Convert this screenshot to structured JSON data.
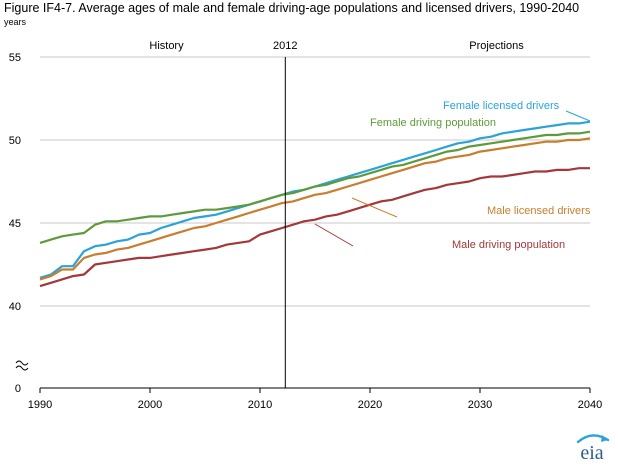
{
  "figure": {
    "title": "Figure IF4-7. Average ages of male and female driving-age populations and licensed drivers, 1990-2040",
    "units": "years",
    "history_label": "History",
    "divider_label": "2012",
    "projections_label": "Projections",
    "logo_text": "eia"
  },
  "colors": {
    "female_licensed": "#2aa3d8",
    "female_population": "#5d9b3a",
    "male_licensed": "#c97d2e",
    "male_population": "#a3373a",
    "gridline": "#c8c8c8",
    "axis": "#000000"
  },
  "chart_data": {
    "type": "line",
    "ylabel": "years",
    "xlim": [
      1990,
      2040
    ],
    "ylim_display": [
      40,
      55
    ],
    "y_axis_break": true,
    "y_ticks": [
      0,
      40,
      45,
      50,
      55
    ],
    "x_ticks": [
      1990,
      2000,
      2010,
      2020,
      2030,
      2040
    ],
    "divider_year": 2012.3,
    "grid": "horizontal",
    "x": [
      1990,
      1991,
      1992,
      1993,
      1994,
      1995,
      1996,
      1997,
      1998,
      1999,
      2000,
      2001,
      2002,
      2003,
      2004,
      2005,
      2006,
      2007,
      2008,
      2009,
      2010,
      2011,
      2012,
      2013,
      2014,
      2015,
      2016,
      2017,
      2018,
      2019,
      2020,
      2021,
      2022,
      2023,
      2024,
      2025,
      2026,
      2027,
      2028,
      2029,
      2030,
      2031,
      2032,
      2033,
      2034,
      2035,
      2036,
      2037,
      2038,
      2039,
      2040
    ],
    "series": [
      {
        "name": "Female licensed drivers",
        "key": "female_licensed",
        "values": [
          41.7,
          41.9,
          42.4,
          42.4,
          43.3,
          43.6,
          43.7,
          43.9,
          44.0,
          44.3,
          44.4,
          44.7,
          44.9,
          45.1,
          45.3,
          45.4,
          45.5,
          45.7,
          45.9,
          46.1,
          46.3,
          46.5,
          46.7,
          46.9,
          47.0,
          47.2,
          47.4,
          47.6,
          47.8,
          48.0,
          48.2,
          48.4,
          48.6,
          48.8,
          49.0,
          49.2,
          49.4,
          49.6,
          49.8,
          49.9,
          50.1,
          50.2,
          50.4,
          50.5,
          50.6,
          50.7,
          50.8,
          50.9,
          51.0,
          51.0,
          51.1
        ]
      },
      {
        "name": "Female driving population",
        "key": "female_population",
        "values": [
          43.8,
          44.0,
          44.2,
          44.3,
          44.4,
          44.9,
          45.1,
          45.1,
          45.2,
          45.3,
          45.4,
          45.4,
          45.5,
          45.6,
          45.7,
          45.8,
          45.8,
          45.9,
          46.0,
          46.1,
          46.3,
          46.5,
          46.7,
          46.8,
          47.0,
          47.2,
          47.3,
          47.5,
          47.7,
          47.8,
          48.0,
          48.2,
          48.4,
          48.5,
          48.7,
          48.9,
          49.1,
          49.3,
          49.4,
          49.6,
          49.7,
          49.8,
          49.9,
          50.0,
          50.1,
          50.2,
          50.3,
          50.3,
          50.4,
          50.4,
          50.5
        ]
      },
      {
        "name": "Male licensed drivers",
        "key": "male_licensed",
        "values": [
          41.6,
          41.8,
          42.2,
          42.2,
          42.9,
          43.1,
          43.2,
          43.4,
          43.5,
          43.7,
          43.9,
          44.1,
          44.3,
          44.5,
          44.7,
          44.8,
          45.0,
          45.2,
          45.4,
          45.6,
          45.8,
          46.0,
          46.2,
          46.3,
          46.5,
          46.7,
          46.8,
          47.0,
          47.2,
          47.4,
          47.6,
          47.8,
          48.0,
          48.2,
          48.4,
          48.6,
          48.7,
          48.9,
          49.0,
          49.1,
          49.3,
          49.4,
          49.5,
          49.6,
          49.7,
          49.8,
          49.9,
          49.9,
          50.0,
          50.0,
          50.1
        ]
      },
      {
        "name": "Male driving population",
        "key": "male_population",
        "values": [
          41.2,
          41.4,
          41.6,
          41.8,
          41.9,
          42.5,
          42.6,
          42.7,
          42.8,
          42.9,
          42.9,
          43.0,
          43.1,
          43.2,
          43.3,
          43.4,
          43.5,
          43.7,
          43.8,
          43.9,
          44.3,
          44.5,
          44.7,
          44.9,
          45.1,
          45.2,
          45.4,
          45.5,
          45.7,
          45.9,
          46.1,
          46.3,
          46.4,
          46.6,
          46.8,
          47.0,
          47.1,
          47.3,
          47.4,
          47.5,
          47.7,
          47.8,
          47.8,
          47.9,
          48.0,
          48.1,
          48.1,
          48.2,
          48.2,
          48.3,
          48.3
        ]
      }
    ],
    "annotations": [
      {
        "text": "Female licensed drivers",
        "key": "female_licensed"
      },
      {
        "text": "Female driving population",
        "key": "female_population"
      },
      {
        "text": "Male licensed drivers",
        "key": "male_licensed"
      },
      {
        "text": "Male driving population",
        "key": "male_population"
      }
    ]
  }
}
